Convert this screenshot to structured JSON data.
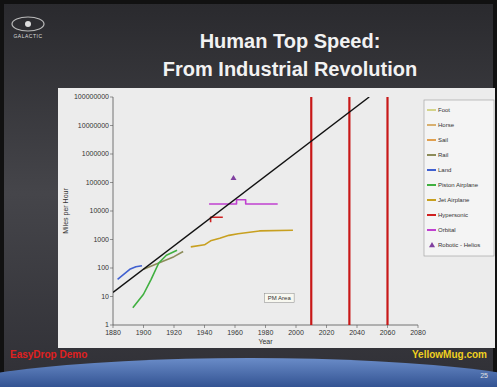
{
  "chart_data": {
    "type": "line",
    "title": "Human Top Speed:",
    "subtitle": "From Industrial Revolution",
    "x_label": "Year",
    "y_label": "Miles per Hour",
    "xlim": [
      1880,
      2080
    ],
    "xticks": [
      1880,
      1900,
      1920,
      1940,
      1960,
      1980,
      2000,
      2020,
      2040,
      2060,
      2080
    ],
    "ylim": [
      1,
      100000000
    ],
    "yticks": [
      1,
      10,
      100,
      1000,
      10000,
      100000,
      1000000,
      10000000,
      100000000
    ],
    "log": "y",
    "grid": false,
    "legend": "right",
    "series": [
      {
        "name": "Foot",
        "color": "#d4d48a",
        "x": [],
        "values": []
      },
      {
        "name": "Horse",
        "color": "#d8b070",
        "x": [],
        "values": []
      },
      {
        "name": "Sail",
        "color": "#e0a050",
        "x": [],
        "values": []
      },
      {
        "name": "Rail",
        "color": "#8c8c5a",
        "x": [
          1900,
          1910,
          1920,
          1926
        ],
        "values": [
          90,
          150,
          250,
          380
        ]
      },
      {
        "name": "Land",
        "color": "#4060d0",
        "x": [
          1883,
          1887,
          1891,
          1895,
          1899
        ],
        "values": [
          40,
          60,
          90,
          110,
          120
        ]
      },
      {
        "name": "Piston Airplane",
        "color": "#40b040",
        "x": [
          1893,
          1900,
          1905,
          1910,
          1915,
          1922
        ],
        "values": [
          4,
          12,
          40,
          150,
          280,
          420
        ]
      },
      {
        "name": "Jet Airplane",
        "color": "#c8a020",
        "x": [
          1931,
          1940,
          1944,
          1950,
          1956,
          1962,
          1976,
          1998
        ],
        "values": [
          550,
          650,
          900,
          1100,
          1400,
          1600,
          2000,
          2100
        ]
      },
      {
        "name": "Hypersonic",
        "color": "#d02020",
        "x": [
          1944,
          1944,
          1952
        ],
        "values": [
          4000,
          6000,
          6000
        ]
      },
      {
        "name": "Orbital",
        "color": "#c040d0",
        "x": [
          1943,
          1961,
          1961,
          1967,
          1967,
          1988
        ],
        "values": [
          17500,
          17500,
          24800,
          24800,
          17500,
          17500
        ]
      },
      {
        "name": "Robotic - Helios",
        "color": "#8040a0",
        "type": "scatter",
        "marker": "triangle",
        "x": [
          1959
        ],
        "values": [
          145000
        ]
      }
    ],
    "trend_line": {
      "color": "#111111",
      "x": [
        1880,
        2048
      ],
      "values": [
        14,
        100000000
      ]
    },
    "reference_lines": {
      "color": "#c81818",
      "x": [
        2010,
        2035,
        2060
      ]
    },
    "annotations": [
      {
        "text": "PM Area",
        "x": 1989,
        "y": 8
      }
    ]
  },
  "slide": {
    "logo": "GALACTIC",
    "footer_left": "EasyDrop Demo",
    "footer_right": "YellowMug.com",
    "page_number": 25
  }
}
